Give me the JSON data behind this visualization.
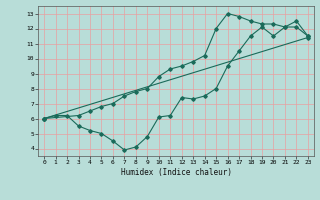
{
  "xlabel": "Humidex (Indice chaleur)",
  "xlim": [
    -0.5,
    23.5
  ],
  "ylim": [
    3.5,
    13.5
  ],
  "xticks": [
    0,
    1,
    2,
    3,
    4,
    5,
    6,
    7,
    8,
    9,
    10,
    11,
    12,
    13,
    14,
    15,
    16,
    17,
    18,
    19,
    20,
    21,
    22,
    23
  ],
  "yticks": [
    4,
    5,
    6,
    7,
    8,
    9,
    10,
    11,
    12,
    13
  ],
  "bg_color": "#b8ddd8",
  "line_color": "#1a6b5a",
  "grid_color": "#e8a0a0",
  "line1_x": [
    0,
    1,
    2,
    3,
    4,
    5,
    6,
    7,
    8,
    9,
    10,
    11,
    12,
    13,
    14,
    15,
    16,
    17,
    18,
    19,
    20,
    21,
    22,
    23
  ],
  "line1_y": [
    6.0,
    6.2,
    6.2,
    5.5,
    5.2,
    5.0,
    4.5,
    3.9,
    4.1,
    4.8,
    6.1,
    6.2,
    7.4,
    7.3,
    7.5,
    8.0,
    9.5,
    10.5,
    11.5,
    12.1,
    11.5,
    12.1,
    12.5,
    11.5
  ],
  "line2_x": [
    0,
    3,
    4,
    5,
    6,
    7,
    8,
    9,
    10,
    11,
    12,
    13,
    14,
    15,
    16,
    17,
    18,
    19,
    20,
    21,
    22,
    23
  ],
  "line2_y": [
    6.0,
    6.2,
    6.5,
    6.8,
    7.0,
    7.5,
    7.8,
    8.0,
    8.8,
    9.3,
    9.5,
    9.8,
    10.2,
    12.0,
    13.0,
    12.8,
    12.5,
    12.3,
    12.3,
    12.1,
    12.1,
    11.5
  ],
  "line3_x": [
    0,
    23
  ],
  "line3_y": [
    6.0,
    11.4
  ]
}
